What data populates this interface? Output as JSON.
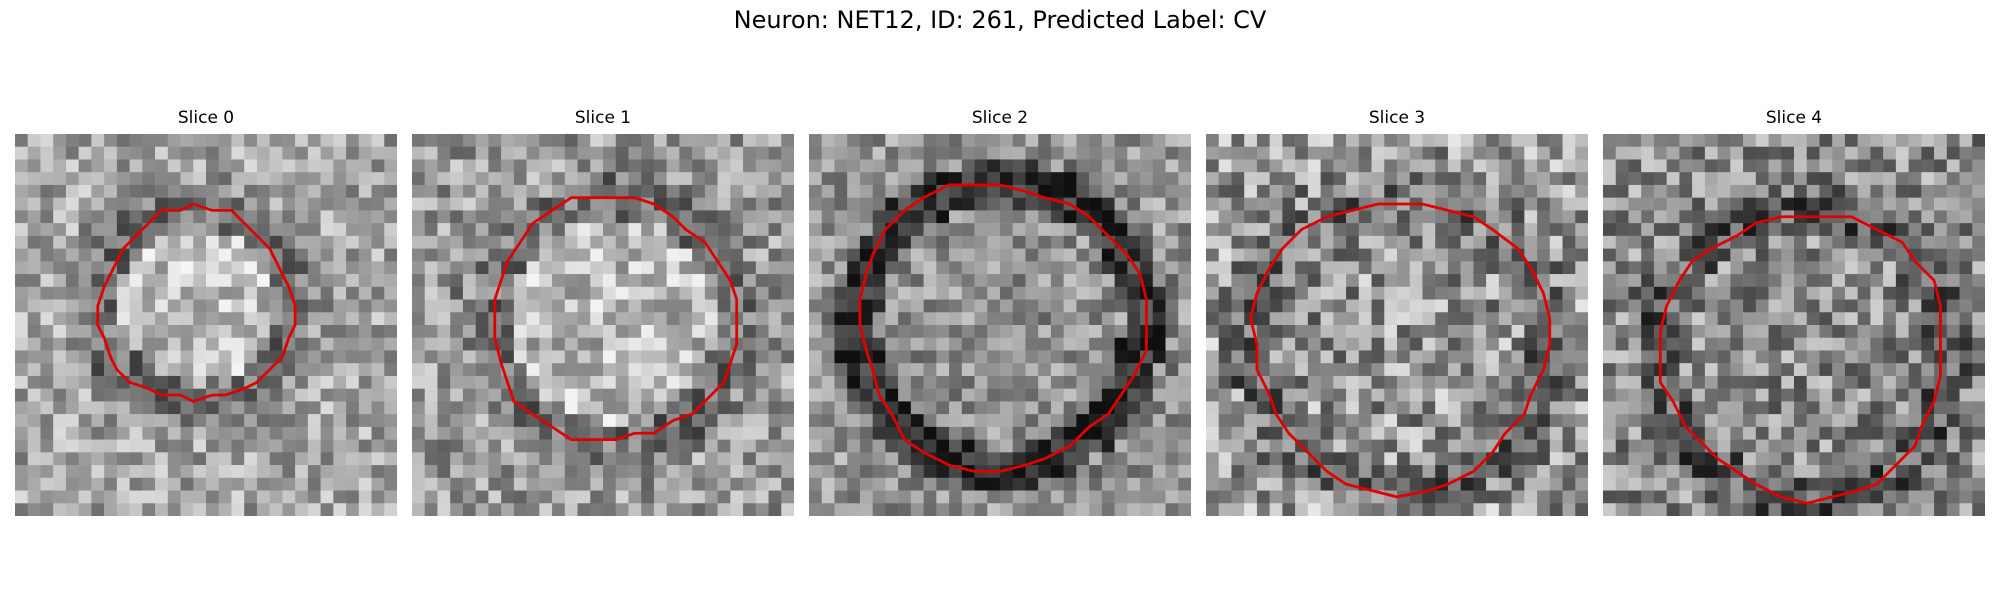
{
  "title": "Neuron: NET12, ID: 261, Predicted Label: CV",
  "panels": [
    {
      "label": "Slice 0"
    },
    {
      "label": "Slice 1"
    },
    {
      "label": "Slice 2"
    },
    {
      "label": "Slice 3"
    },
    {
      "label": "Slice 4"
    }
  ],
  "contour_color": "#e00000",
  "image_colormap": "grayscale"
}
